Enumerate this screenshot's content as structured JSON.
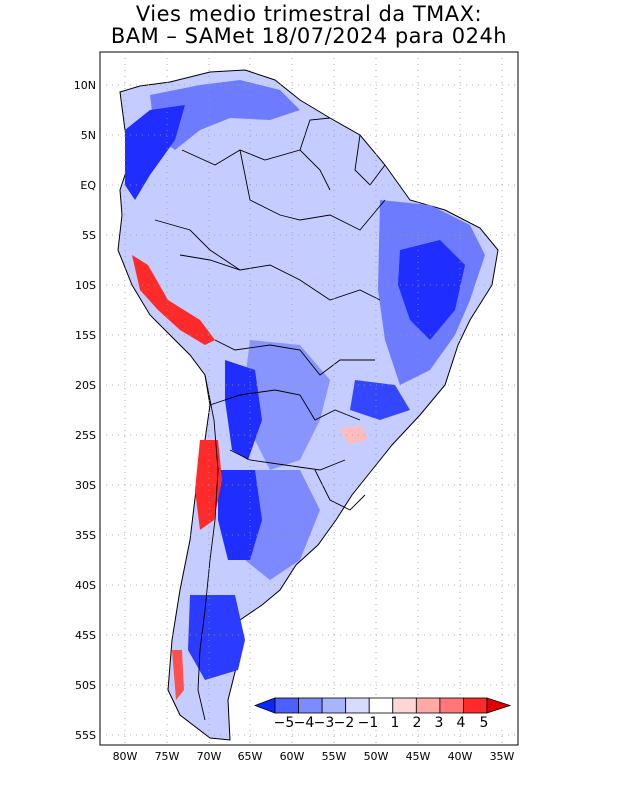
{
  "title_line1": "Vies medio trimestral da TMAX:",
  "title_line2": "BAM – SAMet 18/07/2024  para 024h",
  "lat_labels": [
    "10N",
    "5N",
    "EQ",
    "5S",
    "10S",
    "15S",
    "20S",
    "25S",
    "30S",
    "35S",
    "40S",
    "45S",
    "50S",
    "55S"
  ],
  "lon_labels": [
    "80W",
    "75W",
    "70W",
    "65W",
    "60W",
    "55W",
    "50W",
    "45W",
    "40W",
    "35W"
  ],
  "colorbar": {
    "labels": [
      "−5",
      "−4",
      "−3",
      "−2",
      "−1",
      "1",
      "2",
      "3",
      "4",
      "5"
    ],
    "colors": [
      "#0a28ff",
      "#4d5fff",
      "#7c8cff",
      "#a9b4ff",
      "#d6dcff",
      "#ffffff",
      "#ffd6d6",
      "#ffa8a8",
      "#ff7777",
      "#ff2a2a",
      "#e00000"
    ]
  },
  "colors": {
    "border": "#000000",
    "grid": "#9a9a9a",
    "deep_blue": "#1f2dff",
    "mid_blue": "#6d7cff",
    "light_blue": "#c5ccff",
    "red": "#ff2222"
  }
}
